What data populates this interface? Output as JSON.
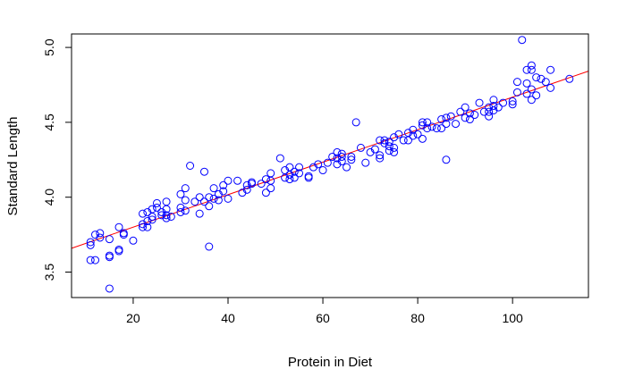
{
  "chart_data": {
    "type": "scatter",
    "title": "",
    "xlabel": "Protein in Diet",
    "ylabel": "Standard Length",
    "xlim": [
      7,
      116
    ],
    "ylim": [
      3.33,
      5.09
    ],
    "x_ticks": [
      20,
      40,
      60,
      80,
      100
    ],
    "y_ticks": [
      3.5,
      4.0,
      4.5,
      5.0
    ],
    "x_tick_labels": [
      "20",
      "40",
      "60",
      "80",
      "100"
    ],
    "y_tick_labels": [
      "3.5",
      "4.0",
      "4.5",
      "5.0"
    ],
    "grid": false,
    "legend": "none",
    "colors": {
      "points": "#0000ff",
      "fit_line": "#ff0000",
      "axes": "#000000"
    },
    "fit_line": {
      "intercept": 3.583,
      "slope": 0.01085
    },
    "points": [
      [
        11,
        3.7
      ],
      [
        11,
        3.68
      ],
      [
        11,
        3.58
      ],
      [
        12,
        3.58
      ],
      [
        12,
        3.75
      ],
      [
        13,
        3.73
      ],
      [
        13,
        3.76
      ],
      [
        15,
        3.72
      ],
      [
        15,
        3.61
      ],
      [
        15,
        3.6
      ],
      [
        15,
        3.39
      ],
      [
        17,
        3.8
      ],
      [
        17,
        3.65
      ],
      [
        17,
        3.64
      ],
      [
        18,
        3.76
      ],
      [
        18,
        3.75
      ],
      [
        20,
        3.71
      ],
      [
        22,
        3.89
      ],
      [
        22,
        3.82
      ],
      [
        22,
        3.8
      ],
      [
        23,
        3.84
      ],
      [
        23,
        3.8
      ],
      [
        23,
        3.9
      ],
      [
        24,
        3.92
      ],
      [
        24,
        3.87
      ],
      [
        24,
        3.85
      ],
      [
        25,
        3.96
      ],
      [
        25,
        3.93
      ],
      [
        26,
        3.9
      ],
      [
        26,
        3.88
      ],
      [
        27,
        3.97
      ],
      [
        27,
        3.92
      ],
      [
        27,
        3.88
      ],
      [
        27,
        3.86
      ],
      [
        28,
        3.87
      ],
      [
        30,
        4.02
      ],
      [
        30,
        3.93
      ],
      [
        30,
        3.9
      ],
      [
        31,
        4.06
      ],
      [
        31,
        3.98
      ],
      [
        31,
        3.91
      ],
      [
        32,
        4.21
      ],
      [
        33,
        3.97
      ],
      [
        34,
        4.0
      ],
      [
        34,
        3.89
      ],
      [
        35,
        4.17
      ],
      [
        35,
        3.97
      ],
      [
        36,
        4.0
      ],
      [
        36,
        3.94
      ],
      [
        36,
        3.67
      ],
      [
        37,
        3.99
      ],
      [
        37,
        4.06
      ],
      [
        38,
        4.02
      ],
      [
        38,
        3.98
      ],
      [
        39,
        4.08
      ],
      [
        39,
        4.04
      ],
      [
        40,
        4.11
      ],
      [
        40,
        3.99
      ],
      [
        42,
        4.11
      ],
      [
        43,
        4.03
      ],
      [
        44,
        4.08
      ],
      [
        44,
        4.05
      ],
      [
        45,
        4.09
      ],
      [
        45,
        4.1
      ],
      [
        47,
        4.09
      ],
      [
        48,
        4.12
      ],
      [
        48,
        4.03
      ],
      [
        49,
        4.16
      ],
      [
        49,
        4.11
      ],
      [
        49,
        4.06
      ],
      [
        51,
        4.26
      ],
      [
        52,
        4.18
      ],
      [
        52,
        4.13
      ],
      [
        53,
        4.2
      ],
      [
        53,
        4.15
      ],
      [
        53,
        4.12
      ],
      [
        54,
        4.17
      ],
      [
        54,
        4.13
      ],
      [
        55,
        4.2
      ],
      [
        55,
        4.16
      ],
      [
        57,
        4.14
      ],
      [
        57,
        4.13
      ],
      [
        58,
        4.2
      ],
      [
        59,
        4.22
      ],
      [
        60,
        4.18
      ],
      [
        61,
        4.23
      ],
      [
        62,
        4.27
      ],
      [
        63,
        4.3
      ],
      [
        63,
        4.26
      ],
      [
        63,
        4.22
      ],
      [
        64,
        4.29
      ],
      [
        64,
        4.27
      ],
      [
        64,
        4.24
      ],
      [
        65,
        4.2
      ],
      [
        66,
        4.25
      ],
      [
        66,
        4.27
      ],
      [
        67,
        4.5
      ],
      [
        68,
        4.33
      ],
      [
        69,
        4.23
      ],
      [
        70,
        4.3
      ],
      [
        71,
        4.32
      ],
      [
        72,
        4.38
      ],
      [
        72,
        4.28
      ],
      [
        72,
        4.26
      ],
      [
        73,
        4.38
      ],
      [
        73,
        4.36
      ],
      [
        74,
        4.37
      ],
      [
        74,
        4.34
      ],
      [
        74,
        4.31
      ],
      [
        75,
        4.4
      ],
      [
        75,
        4.33
      ],
      [
        75,
        4.3
      ],
      [
        76,
        4.42
      ],
      [
        77,
        4.38
      ],
      [
        78,
        4.43
      ],
      [
        78,
        4.38
      ],
      [
        79,
        4.45
      ],
      [
        79,
        4.41
      ],
      [
        80,
        4.42
      ],
      [
        81,
        4.48
      ],
      [
        81,
        4.5
      ],
      [
        81,
        4.39
      ],
      [
        82,
        4.5
      ],
      [
        82,
        4.46
      ],
      [
        83,
        4.47
      ],
      [
        84,
        4.46
      ],
      [
        85,
        4.52
      ],
      [
        85,
        4.46
      ],
      [
        86,
        4.53
      ],
      [
        86,
        4.49
      ],
      [
        86,
        4.25
      ],
      [
        87,
        4.54
      ],
      [
        88,
        4.49
      ],
      [
        89,
        4.57
      ],
      [
        90,
        4.6
      ],
      [
        90,
        4.53
      ],
      [
        91,
        4.56
      ],
      [
        91,
        4.52
      ],
      [
        92,
        4.55
      ],
      [
        93,
        4.63
      ],
      [
        94,
        4.57
      ],
      [
        95,
        4.6
      ],
      [
        95,
        4.57
      ],
      [
        95,
        4.54
      ],
      [
        96,
        4.65
      ],
      [
        96,
        4.61
      ],
      [
        96,
        4.58
      ],
      [
        97,
        4.6
      ],
      [
        98,
        4.63
      ],
      [
        100,
        4.62
      ],
      [
        100,
        4.64
      ],
      [
        101,
        4.7
      ],
      [
        101,
        4.77
      ],
      [
        102,
        5.05
      ],
      [
        103,
        4.85
      ],
      [
        103,
        4.76
      ],
      [
        103,
        4.69
      ],
      [
        104,
        4.88
      ],
      [
        104,
        4.85
      ],
      [
        104,
        4.72
      ],
      [
        104,
        4.65
      ],
      [
        105,
        4.8
      ],
      [
        105,
        4.68
      ],
      [
        106,
        4.79
      ],
      [
        107,
        4.77
      ],
      [
        108,
        4.85
      ],
      [
        108,
        4.73
      ],
      [
        112,
        4.79
      ]
    ]
  }
}
